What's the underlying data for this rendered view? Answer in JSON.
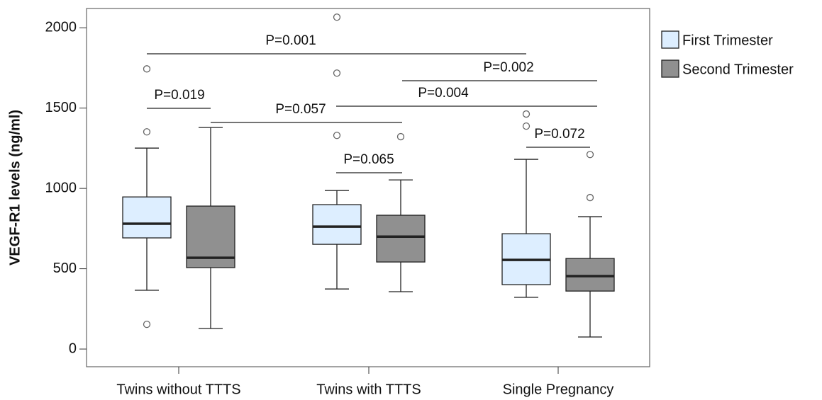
{
  "chart_data": {
    "type": "box",
    "ylabel": "VEGF-R1 levels (ng/ml)",
    "categories": [
      "Twins without TTTS",
      "Twins with TTTS",
      "Single Pregnancy"
    ],
    "ylim": [
      -110,
      2120
    ],
    "yticks": [
      0,
      500,
      1000,
      1500,
      2000
    ],
    "series": [
      {
        "name": "First Trimester",
        "color": "#ddeeff",
        "boxes": [
          {
            "whislo": 366,
            "q1": 692,
            "med": 780,
            "q3": 947,
            "whishi": 1251,
            "fliers": [
              1744,
              1352,
              154
            ]
          },
          {
            "whislo": 374,
            "q1": 652,
            "med": 762,
            "q3": 899,
            "whishi": 987,
            "fliers": [
              2066,
              1718,
              1330
            ]
          },
          {
            "whislo": 322,
            "q1": 401,
            "med": 555,
            "q3": 718,
            "whishi": 1181,
            "fliers": [
              1463,
              1388
            ]
          }
        ]
      },
      {
        "name": "Second Trimester",
        "color": "#909090",
        "boxes": [
          {
            "whislo": 128,
            "q1": 507,
            "med": 568,
            "q3": 890,
            "whishi": 1379,
            "fliers": []
          },
          {
            "whislo": 357,
            "q1": 542,
            "med": 700,
            "q3": 833,
            "whishi": 1053,
            "fliers": [
              1322
            ]
          },
          {
            "whislo": 75,
            "q1": 361,
            "med": 454,
            "q3": 564,
            "whishi": 824,
            "fliers": [
              1211,
              943
            ]
          }
        ]
      }
    ],
    "annotations": [
      "P=0.001",
      "P=0.002",
      "P=0.004",
      "P=0.057",
      "P=0.019",
      "P=0.065",
      "P=0.072"
    ]
  }
}
